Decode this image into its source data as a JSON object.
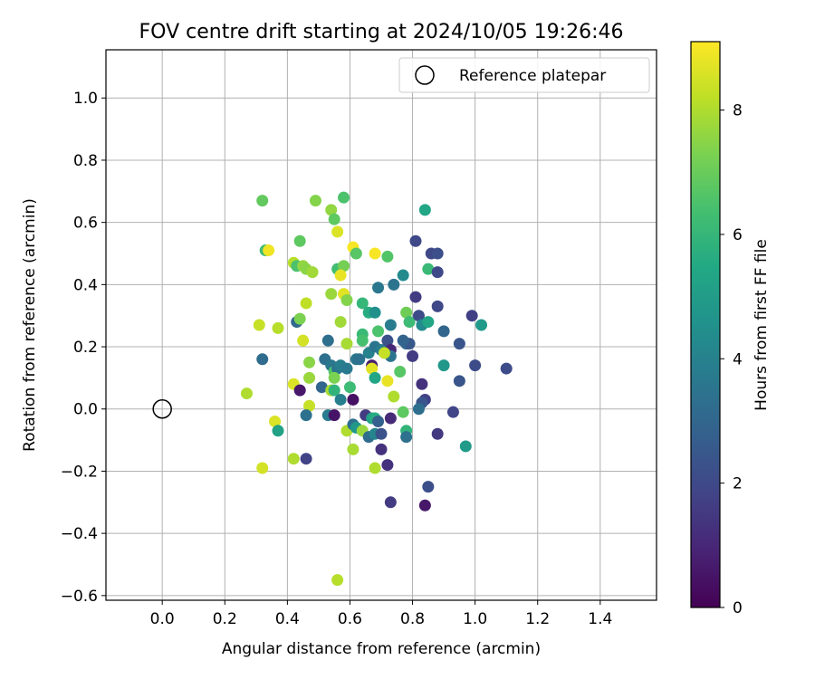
{
  "chart_data": {
    "type": "scatter",
    "title": "FOV centre drift starting at 2024/10/05 19:26:46",
    "xlabel": "Angular distance from reference (arcmin)",
    "ylabel": "Rotation from reference (arcmin)",
    "xlim": [
      -0.18,
      1.58
    ],
    "ylim": [
      -0.615,
      1.155
    ],
    "xticks": [
      0.0,
      0.2,
      0.4,
      0.6,
      0.8,
      1.0,
      1.2,
      1.4
    ],
    "yticks": [
      -0.6,
      -0.4,
      -0.2,
      0.0,
      0.2,
      0.4,
      0.6,
      0.8,
      1.0
    ],
    "xtick_labels": [
      "0.0",
      "0.2",
      "0.4",
      "0.6",
      "0.8",
      "1.0",
      "1.2",
      "1.4"
    ],
    "ytick_labels": [
      "−0.6",
      "−0.4",
      "−0.2",
      "0.0",
      "0.2",
      "0.4",
      "0.6",
      "0.8",
      "1.0"
    ],
    "grid": true,
    "legend": {
      "position": "top-right",
      "entries": [
        "Reference platepar"
      ]
    },
    "reference_point": {
      "x": 0.0,
      "y": 0.0,
      "label": "Reference platepar"
    },
    "colorbar": {
      "label": "Hours from first FF file",
      "colormap": "viridis",
      "range": [
        0,
        9.1
      ],
      "ticks": [
        0,
        2,
        4,
        6,
        8
      ],
      "tick_labels": [
        "0",
        "2",
        "4",
        "6",
        "8"
      ]
    },
    "points": [
      {
        "x": 0.32,
        "y": 0.67,
        "c": 6.9
      },
      {
        "x": 0.33,
        "y": 0.51,
        "c": 6.2
      },
      {
        "x": 0.34,
        "y": 0.51,
        "c": 8.9
      },
      {
        "x": 0.31,
        "y": 0.27,
        "c": 8.3
      },
      {
        "x": 0.32,
        "y": 0.16,
        "c": 3.2
      },
      {
        "x": 0.37,
        "y": 0.26,
        "c": 8.1
      },
      {
        "x": 0.36,
        "y": -0.04,
        "c": 8.6
      },
      {
        "x": 0.37,
        "y": -0.07,
        "c": 5.2
      },
      {
        "x": 0.32,
        "y": -0.19,
        "c": 8.5
      },
      {
        "x": 0.27,
        "y": 0.05,
        "c": 8.0
      },
      {
        "x": 0.42,
        "y": 0.47,
        "c": 8.1
      },
      {
        "x": 0.43,
        "y": 0.46,
        "c": 6.5
      },
      {
        "x": 0.44,
        "y": 0.54,
        "c": 6.8
      },
      {
        "x": 0.45,
        "y": 0.46,
        "c": 7.6
      },
      {
        "x": 0.46,
        "y": 0.45,
        "c": 7.5
      },
      {
        "x": 0.48,
        "y": 0.44,
        "c": 7.8
      },
      {
        "x": 0.43,
        "y": 0.28,
        "c": 3.1
      },
      {
        "x": 0.44,
        "y": 0.29,
        "c": 7.3
      },
      {
        "x": 0.46,
        "y": 0.34,
        "c": 8.2
      },
      {
        "x": 0.45,
        "y": 0.22,
        "c": 8.5
      },
      {
        "x": 0.47,
        "y": 0.15,
        "c": 7.5
      },
      {
        "x": 0.47,
        "y": 0.1,
        "c": 7.7
      },
      {
        "x": 0.42,
        "y": 0.08,
        "c": 8.6
      },
      {
        "x": 0.44,
        "y": 0.06,
        "c": 0.6
      },
      {
        "x": 0.47,
        "y": 0.01,
        "c": 8.3
      },
      {
        "x": 0.46,
        "y": -0.02,
        "c": 3.4
      },
      {
        "x": 0.42,
        "y": -0.16,
        "c": 8.0
      },
      {
        "x": 0.46,
        "y": -0.16,
        "c": 1.8
      },
      {
        "x": 0.49,
        "y": 0.67,
        "c": 7.4
      },
      {
        "x": 0.54,
        "y": 0.64,
        "c": 7.6
      },
      {
        "x": 0.55,
        "y": 0.61,
        "c": 6.8
      },
      {
        "x": 0.58,
        "y": 0.68,
        "c": 6.5
      },
      {
        "x": 0.56,
        "y": 0.57,
        "c": 8.6
      },
      {
        "x": 0.56,
        "y": 0.45,
        "c": 6.3
      },
      {
        "x": 0.58,
        "y": 0.46,
        "c": 7.2
      },
      {
        "x": 0.57,
        "y": 0.43,
        "c": 8.8
      },
      {
        "x": 0.54,
        "y": 0.37,
        "c": 7.7
      },
      {
        "x": 0.58,
        "y": 0.37,
        "c": 8.7
      },
      {
        "x": 0.59,
        "y": 0.35,
        "c": 7.4
      },
      {
        "x": 0.57,
        "y": 0.28,
        "c": 7.8
      },
      {
        "x": 0.53,
        "y": 0.22,
        "c": 3.3
      },
      {
        "x": 0.59,
        "y": 0.21,
        "c": 7.9
      },
      {
        "x": 0.52,
        "y": 0.16,
        "c": 3.3
      },
      {
        "x": 0.54,
        "y": 0.14,
        "c": 3.6
      },
      {
        "x": 0.55,
        "y": 0.12,
        "c": 6.6
      },
      {
        "x": 0.56,
        "y": 0.13,
        "c": 3.5
      },
      {
        "x": 0.57,
        "y": 0.14,
        "c": 3.9
      },
      {
        "x": 0.59,
        "y": 0.13,
        "c": 3.7
      },
      {
        "x": 0.55,
        "y": 0.1,
        "c": 7.3
      },
      {
        "x": 0.51,
        "y": 0.07,
        "c": 3.0
      },
      {
        "x": 0.54,
        "y": 0.06,
        "c": 7.9
      },
      {
        "x": 0.55,
        "y": 0.06,
        "c": 5.9
      },
      {
        "x": 0.57,
        "y": 0.03,
        "c": 3.9
      },
      {
        "x": 0.6,
        "y": 0.07,
        "c": 6.2
      },
      {
        "x": 0.61,
        "y": 0.03,
        "c": 0.4
      },
      {
        "x": 0.53,
        "y": -0.02,
        "c": 3.8
      },
      {
        "x": 0.55,
        "y": -0.02,
        "c": 0.5
      },
      {
        "x": 0.59,
        "y": -0.07,
        "c": 8.0
      },
      {
        "x": 0.61,
        "y": -0.05,
        "c": 3.3
      },
      {
        "x": 0.62,
        "y": -0.06,
        "c": 4.8
      },
      {
        "x": 0.61,
        "y": -0.13,
        "c": 7.9
      },
      {
        "x": 0.56,
        "y": -0.55,
        "c": 8.1
      },
      {
        "x": 0.61,
        "y": 0.52,
        "c": 9.0
      },
      {
        "x": 0.62,
        "y": 0.5,
        "c": 6.7
      },
      {
        "x": 0.68,
        "y": 0.5,
        "c": 9.0
      },
      {
        "x": 0.72,
        "y": 0.49,
        "c": 6.6
      },
      {
        "x": 0.64,
        "y": 0.34,
        "c": 6.0
      },
      {
        "x": 0.66,
        "y": 0.31,
        "c": 5.6
      },
      {
        "x": 0.68,
        "y": 0.31,
        "c": 4.5
      },
      {
        "x": 0.69,
        "y": 0.39,
        "c": 3.6
      },
      {
        "x": 0.74,
        "y": 0.4,
        "c": 3.5
      },
      {
        "x": 0.77,
        "y": 0.43,
        "c": 4.3
      },
      {
        "x": 0.64,
        "y": 0.24,
        "c": 6.1
      },
      {
        "x": 0.64,
        "y": 0.22,
        "c": 6.4
      },
      {
        "x": 0.69,
        "y": 0.25,
        "c": 6.5
      },
      {
        "x": 0.73,
        "y": 0.27,
        "c": 3.8
      },
      {
        "x": 0.66,
        "y": 0.18,
        "c": 4.0
      },
      {
        "x": 0.62,
        "y": 0.16,
        "c": 3.6
      },
      {
        "x": 0.63,
        "y": 0.16,
        "c": 3.4
      },
      {
        "x": 0.67,
        "y": 0.14,
        "c": 0.8
      },
      {
        "x": 0.67,
        "y": 0.13,
        "c": 8.7
      },
      {
        "x": 0.68,
        "y": 0.2,
        "c": 3.5
      },
      {
        "x": 0.7,
        "y": 0.19,
        "c": 3.8
      },
      {
        "x": 0.72,
        "y": 0.22,
        "c": 2.3
      },
      {
        "x": 0.73,
        "y": 0.19,
        "c": 1.0
      },
      {
        "x": 0.73,
        "y": 0.17,
        "c": 3.5
      },
      {
        "x": 0.71,
        "y": 0.18,
        "c": 8.3
      },
      {
        "x": 0.68,
        "y": 0.1,
        "c": 5.4
      },
      {
        "x": 0.72,
        "y": 0.09,
        "c": 8.8
      },
      {
        "x": 0.76,
        "y": 0.12,
        "c": 6.7
      },
      {
        "x": 0.78,
        "y": 0.21,
        "c": 3.2
      },
      {
        "x": 0.79,
        "y": 0.21,
        "c": 2.5
      },
      {
        "x": 0.77,
        "y": 0.22,
        "c": 2.9
      },
      {
        "x": 0.78,
        "y": 0.31,
        "c": 7.1
      },
      {
        "x": 0.79,
        "y": 0.28,
        "c": 6.2
      },
      {
        "x": 0.65,
        "y": -0.02,
        "c": 1.6
      },
      {
        "x": 0.67,
        "y": -0.03,
        "c": 5.2
      },
      {
        "x": 0.68,
        "y": -0.03,
        "c": 5.6
      },
      {
        "x": 0.69,
        "y": -0.04,
        "c": 2.8
      },
      {
        "x": 0.64,
        "y": -0.07,
        "c": 7.7
      },
      {
        "x": 0.66,
        "y": -0.09,
        "c": 3.2
      },
      {
        "x": 0.68,
        "y": -0.08,
        "c": 4.1
      },
      {
        "x": 0.7,
        "y": -0.08,
        "c": 2.3
      },
      {
        "x": 0.7,
        "y": -0.13,
        "c": 1.3
      },
      {
        "x": 0.68,
        "y": -0.19,
        "c": 8.0
      },
      {
        "x": 0.72,
        "y": -0.18,
        "c": 1.3
      },
      {
        "x": 0.73,
        "y": -0.03,
        "c": 1.1
      },
      {
        "x": 0.74,
        "y": 0.04,
        "c": 8.0
      },
      {
        "x": 0.77,
        "y": -0.01,
        "c": 6.8
      },
      {
        "x": 0.78,
        "y": -0.07,
        "c": 5.9
      },
      {
        "x": 0.78,
        "y": -0.09,
        "c": 3.4
      },
      {
        "x": 0.73,
        "y": -0.3,
        "c": 1.6
      },
      {
        "x": 0.81,
        "y": 0.54,
        "c": 2.0
      },
      {
        "x": 0.84,
        "y": 0.64,
        "c": 5.4
      },
      {
        "x": 0.85,
        "y": 0.45,
        "c": 6.1
      },
      {
        "x": 0.86,
        "y": 0.5,
        "c": 2.0
      },
      {
        "x": 0.88,
        "y": 0.5,
        "c": 2.2
      },
      {
        "x": 0.88,
        "y": 0.44,
        "c": 2.0
      },
      {
        "x": 0.81,
        "y": 0.36,
        "c": 1.6
      },
      {
        "x": 0.82,
        "y": 0.3,
        "c": 2.1
      },
      {
        "x": 0.83,
        "y": 0.27,
        "c": 4.3
      },
      {
        "x": 0.85,
        "y": 0.28,
        "c": 5.4
      },
      {
        "x": 0.88,
        "y": 0.33,
        "c": 2.0
      },
      {
        "x": 0.8,
        "y": 0.17,
        "c": 1.6
      },
      {
        "x": 0.83,
        "y": 0.08,
        "c": 1.3
      },
      {
        "x": 0.84,
        "y": 0.03,
        "c": 1.7
      },
      {
        "x": 0.83,
        "y": 0.02,
        "c": 2.4
      },
      {
        "x": 0.82,
        "y": 0.0,
        "c": 3.3
      },
      {
        "x": 0.88,
        "y": -0.08,
        "c": 1.5
      },
      {
        "x": 0.85,
        "y": -0.25,
        "c": 2.2
      },
      {
        "x": 0.84,
        "y": -0.31,
        "c": 0.6
      },
      {
        "x": 0.9,
        "y": 0.25,
        "c": 3.0
      },
      {
        "x": 0.9,
        "y": 0.14,
        "c": 4.8
      },
      {
        "x": 0.93,
        "y": -0.01,
        "c": 1.9
      },
      {
        "x": 0.95,
        "y": 0.21,
        "c": 2.4
      },
      {
        "x": 0.95,
        "y": 0.09,
        "c": 2.4
      },
      {
        "x": 0.97,
        "y": -0.12,
        "c": 4.9
      },
      {
        "x": 0.99,
        "y": 0.3,
        "c": 1.7
      },
      {
        "x": 1.0,
        "y": 0.14,
        "c": 2.1
      },
      {
        "x": 1.02,
        "y": 0.27,
        "c": 4.9
      },
      {
        "x": 1.1,
        "y": 0.13,
        "c": 2.1
      }
    ]
  }
}
